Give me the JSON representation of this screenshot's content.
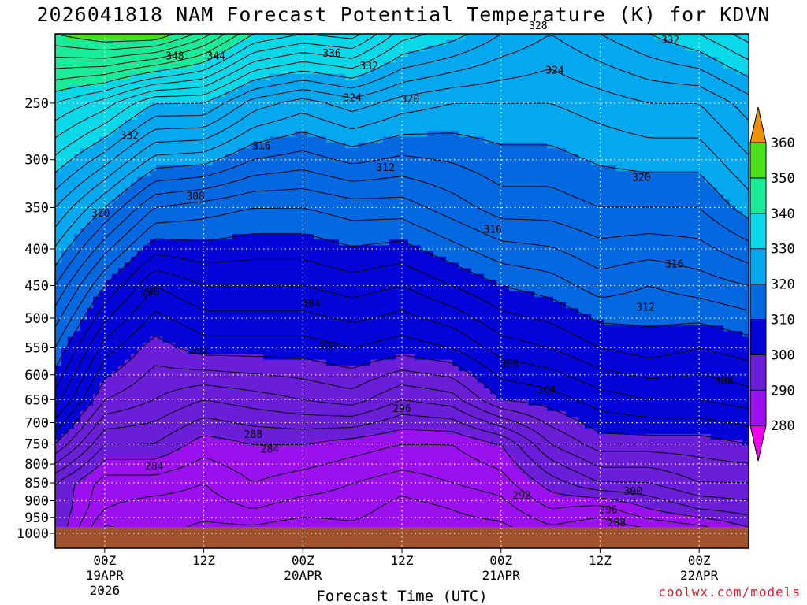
{
  "title": "2026041818 NAM Forecast Potential Temperature (K) for KDVN",
  "credit": "coolwx.com/models",
  "chart_data": {
    "type": "heatmap",
    "title": "2026041818 NAM Forecast Potential Temperature (K) for KDVN",
    "xlabel": "Forecast Time (UTC)",
    "ylabel": "",
    "x_ticks": [
      {
        "hour": 6,
        "l1": "00Z",
        "l2": "19APR",
        "l3": "2026"
      },
      {
        "hour": 18,
        "l1": "12Z",
        "l2": "",
        "l3": ""
      },
      {
        "hour": 30,
        "l1": "00Z",
        "l2": "20APR",
        "l3": ""
      },
      {
        "hour": 42,
        "l1": "12Z",
        "l2": "",
        "l3": ""
      },
      {
        "hour": 54,
        "l1": "00Z",
        "l2": "21APR",
        "l3": ""
      },
      {
        "hour": 66,
        "l1": "12Z",
        "l2": "",
        "l3": ""
      },
      {
        "hour": 78,
        "l1": "00Z",
        "l2": "22APR",
        "l3": ""
      }
    ],
    "x_range_hours": [
      0,
      84
    ],
    "y_levels_hpa": [
      250,
      300,
      350,
      400,
      450,
      500,
      550,
      600,
      650,
      700,
      750,
      800,
      850,
      900,
      950,
      1000
    ],
    "y_range_hpa": [
      200,
      1000
    ],
    "grid": "dotted",
    "colorbar": {
      "ticks": [
        280,
        290,
        300,
        310,
        320,
        330,
        340,
        350,
        360
      ],
      "colors": [
        "#ee00ee",
        "#9a10ee",
        "#6a1ed8",
        "#0404d8",
        "#0468e0",
        "#04a8ee",
        "#08d8e8",
        "#18ec98",
        "#48e018",
        "#e8f018",
        "#f8c808",
        "#f09000"
      ]
    },
    "theta_profiles": {
      "hours": [
        0,
        6,
        12,
        18,
        24,
        30,
        36,
        42,
        48,
        54,
        60,
        66,
        72,
        78,
        84
      ],
      "levels_hpa": [
        1000,
        925,
        850,
        750,
        650,
        550,
        450,
        350,
        250,
        200
      ],
      "values_K": [
        [
          292,
          292,
          292,
          300,
          307,
          312,
          318,
          326,
          338,
          350
        ],
        [
          283,
          286,
          287,
          292,
          298,
          303,
          310,
          320,
          335,
          352
        ],
        [
          285,
          285,
          287,
          292,
          296,
          299,
          304,
          314,
          330,
          352
        ],
        [
          283,
          285,
          286,
          289,
          294,
          301,
          306,
          313,
          330,
          347
        ],
        [
          283,
          286,
          288,
          290,
          295,
          301,
          306,
          312,
          325,
          340
        ],
        [
          282,
          285,
          287,
          290,
          296,
          301,
          306,
          312,
          323,
          338
        ],
        [
          283,
          285,
          286,
          289,
          297,
          302,
          307,
          313,
          325,
          339
        ],
        [
          282,
          283,
          285,
          288,
          294,
          301,
          306,
          313,
          323,
          333
        ],
        [
          283,
          284,
          286,
          288,
          295,
          302,
          308,
          315,
          322,
          331
        ],
        [
          283,
          285,
          287,
          290,
          300,
          305,
          310,
          317,
          322,
          328
        ],
        [
          285,
          288,
          291,
          296,
          301,
          306,
          311,
          317,
          322,
          326
        ],
        [
          284,
          287,
          294,
          299,
          303,
          308,
          313,
          318,
          323,
          328
        ],
        [
          285,
          290,
          294,
          299,
          304,
          309,
          312,
          318,
          324,
          330
        ],
        [
          286,
          292,
          296,
          299,
          304,
          308,
          313,
          318,
          324,
          332
        ],
        [
          289,
          293,
          296,
          300,
          305,
          309,
          314,
          321,
          327,
          335
        ]
      ]
    },
    "contour_labels": [
      {
        "value": "348",
        "hour": 14.5,
        "hpa": 215
      },
      {
        "value": "344",
        "hour": 19.5,
        "hpa": 215
      },
      {
        "value": "336",
        "hour": 33.5,
        "hpa": 213
      },
      {
        "value": "332",
        "hour": 38,
        "hpa": 222
      },
      {
        "value": "328",
        "hour": 58.5,
        "hpa": 195
      },
      {
        "value": "332",
        "hour": 74.5,
        "hpa": 204
      },
      {
        "value": "324",
        "hour": 60.5,
        "hpa": 225
      },
      {
        "value": "324",
        "hour": 36,
        "hpa": 246
      },
      {
        "value": "320",
        "hour": 43,
        "hpa": 247
      },
      {
        "value": "332",
        "hour": 9,
        "hpa": 278
      },
      {
        "value": "316",
        "hour": 25,
        "hpa": 287
      },
      {
        "value": "312",
        "hour": 40,
        "hpa": 308
      },
      {
        "value": "320",
        "hour": 71,
        "hpa": 318
      },
      {
        "value": "308",
        "hour": 17,
        "hpa": 338
      },
      {
        "value": "320",
        "hour": 5.5,
        "hpa": 357
      },
      {
        "value": "316",
        "hour": 53,
        "hpa": 376
      },
      {
        "value": "316",
        "hour": 75,
        "hpa": 420
      },
      {
        "value": "296",
        "hour": 11.5,
        "hpa": 460
      },
      {
        "value": "304",
        "hour": 31,
        "hpa": 478
      },
      {
        "value": "312",
        "hour": 71.5,
        "hpa": 483
      },
      {
        "value": "300",
        "hour": 33,
        "hpa": 548
      },
      {
        "value": "292",
        "hour": 17.5,
        "hpa": 555
      },
      {
        "value": "308",
        "hour": 55,
        "hpa": 580
      },
      {
        "value": "304",
        "hour": 59.5,
        "hpa": 630
      },
      {
        "value": "308",
        "hour": 81,
        "hpa": 613
      },
      {
        "value": "296",
        "hour": 42,
        "hpa": 670
      },
      {
        "value": "288",
        "hour": 24,
        "hpa": 728
      },
      {
        "value": "284",
        "hour": 26,
        "hpa": 763
      },
      {
        "value": "284",
        "hour": 12,
        "hpa": 807
      },
      {
        "value": "300",
        "hour": 70,
        "hpa": 874
      },
      {
        "value": "292",
        "hour": 56.5,
        "hpa": 886
      },
      {
        "value": "296",
        "hour": 67,
        "hpa": 928
      },
      {
        "value": "288",
        "hour": 68,
        "hpa": 968
      }
    ]
  }
}
